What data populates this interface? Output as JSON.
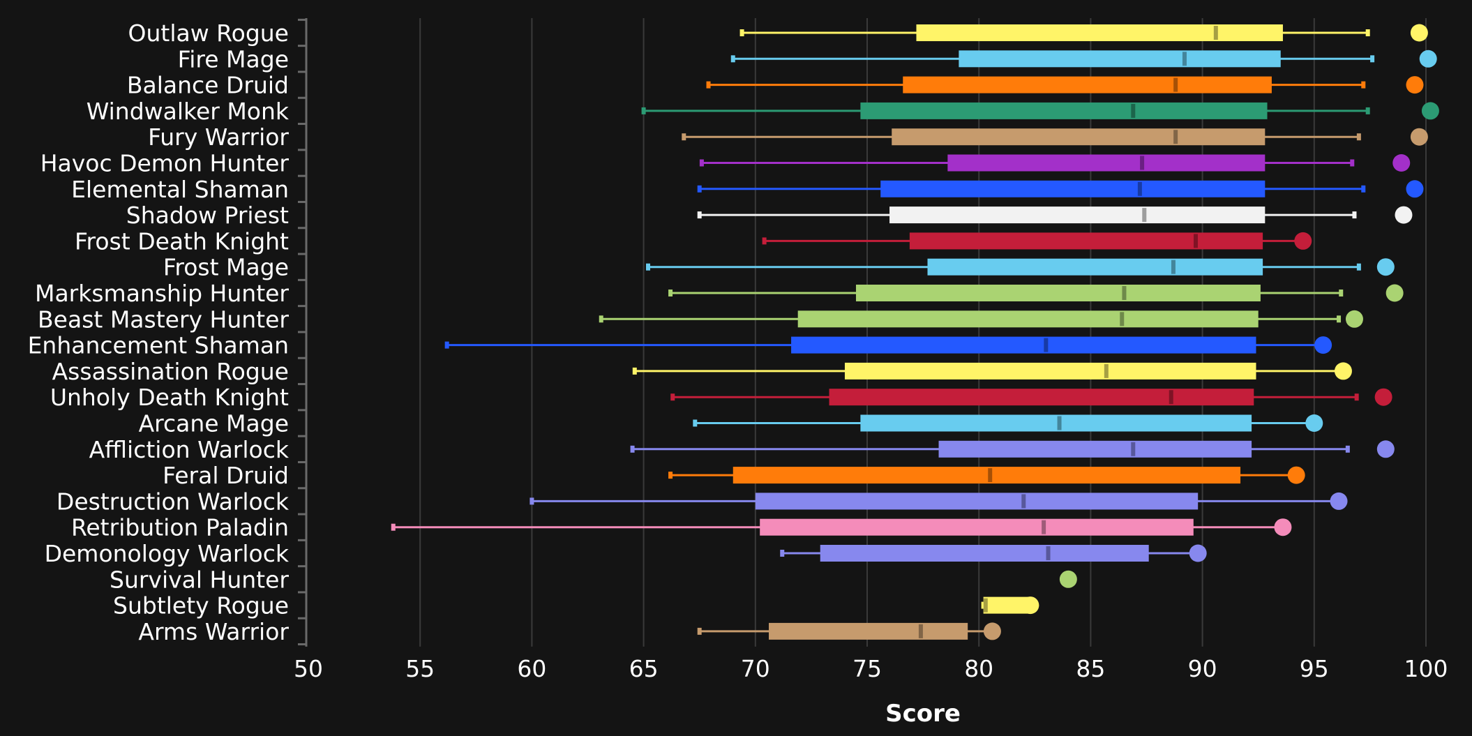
{
  "chart_data": {
    "type": "boxplot",
    "title": "",
    "xlabel": "Score",
    "ylabel": "",
    "xlim": [
      50,
      100
    ],
    "xticks": [
      "50",
      "55",
      "60",
      "65",
      "70",
      "75",
      "80",
      "85",
      "90",
      "95",
      "100"
    ],
    "grid": "vertical",
    "legend": "none",
    "series": [
      {
        "name": "Outlaw Rogue",
        "color": "#fff468",
        "min": 69.4,
        "q1": 77.2,
        "median": 90.6,
        "q3": 93.6,
        "max": 97.4,
        "max_point": 99.7
      },
      {
        "name": "Fire Mage",
        "color": "#68ccef",
        "min": 69.0,
        "q1": 79.1,
        "median": 89.2,
        "q3": 93.5,
        "max": 97.6,
        "max_point": 100.1
      },
      {
        "name": "Balance Druid",
        "color": "#ff7c0a",
        "min": 67.9,
        "q1": 76.6,
        "median": 88.8,
        "q3": 93.1,
        "max": 97.2,
        "max_point": 99.5
      },
      {
        "name": "Windwalker Monk",
        "color": "#2c9b74",
        "min": 65.0,
        "q1": 74.7,
        "median": 86.9,
        "q3": 92.9,
        "max": 97.4,
        "max_point": 100.2
      },
      {
        "name": "Fury Warrior",
        "color": "#c69b6d",
        "min": 66.8,
        "q1": 76.1,
        "median": 88.8,
        "q3": 92.8,
        "max": 97.0,
        "max_point": 99.7
      },
      {
        "name": "Havoc Demon Hunter",
        "color": "#a330c9",
        "min": 67.6,
        "q1": 78.6,
        "median": 87.3,
        "q3": 92.8,
        "max": 96.7,
        "max_point": 98.9
      },
      {
        "name": "Elemental Shaman",
        "color": "#2459ff",
        "min": 67.5,
        "q1": 75.6,
        "median": 87.2,
        "q3": 92.8,
        "max": 97.2,
        "max_point": 99.5
      },
      {
        "name": "Shadow Priest",
        "color": "#f2f2f2",
        "min": 67.5,
        "q1": 76.0,
        "median": 87.4,
        "q3": 92.8,
        "max": 96.8,
        "max_point": 99.0
      },
      {
        "name": "Frost Death Knight",
        "color": "#c41e3a",
        "min": 70.4,
        "q1": 76.9,
        "median": 89.7,
        "q3": 92.7,
        "max": 94.5,
        "max_point": 94.5
      },
      {
        "name": "Frost Mage",
        "color": "#68ccef",
        "min": 65.2,
        "q1": 77.7,
        "median": 88.7,
        "q3": 92.7,
        "max": 97.0,
        "max_point": 98.2
      },
      {
        "name": "Marksmanship Hunter",
        "color": "#aad372",
        "min": 66.2,
        "q1": 74.5,
        "median": 86.5,
        "q3": 92.6,
        "max": 96.2,
        "max_point": 98.6
      },
      {
        "name": "Beast Mastery Hunter",
        "color": "#aad372",
        "min": 63.1,
        "q1": 71.9,
        "median": 86.4,
        "q3": 92.5,
        "max": 96.1,
        "max_point": 96.8
      },
      {
        "name": "Enhancement Shaman",
        "color": "#2459ff",
        "min": 56.2,
        "q1": 71.6,
        "median": 83.0,
        "q3": 92.4,
        "max": 95.4,
        "max_point": 95.4
      },
      {
        "name": "Assassination Rogue",
        "color": "#fff468",
        "min": 64.6,
        "q1": 74.0,
        "median": 85.7,
        "q3": 92.4,
        "max": 96.3,
        "max_point": 96.3
      },
      {
        "name": "Unholy Death Knight",
        "color": "#c41e3a",
        "min": 66.3,
        "q1": 73.3,
        "median": 88.6,
        "q3": 92.3,
        "max": 96.9,
        "max_point": 98.1
      },
      {
        "name": "Arcane Mage",
        "color": "#68ccef",
        "min": 67.3,
        "q1": 74.7,
        "median": 83.6,
        "q3": 92.2,
        "max": 95.0,
        "max_point": 95.0
      },
      {
        "name": "Affliction Warlock",
        "color": "#8788ee",
        "min": 64.5,
        "q1": 78.2,
        "median": 86.9,
        "q3": 92.2,
        "max": 96.5,
        "max_point": 98.2
      },
      {
        "name": "Feral Druid",
        "color": "#ff7c0a",
        "min": 66.2,
        "q1": 69.0,
        "median": 80.5,
        "q3": 91.7,
        "max": 94.2,
        "max_point": 94.2
      },
      {
        "name": "Destruction Warlock",
        "color": "#8788ee",
        "min": 60.0,
        "q1": 70.0,
        "median": 82.0,
        "q3": 89.8,
        "max": 96.1,
        "max_point": 96.1
      },
      {
        "name": "Retribution Paladin",
        "color": "#f48cba",
        "min": 53.8,
        "q1": 70.2,
        "median": 82.9,
        "q3": 89.6,
        "max": 93.6,
        "max_point": 93.6
      },
      {
        "name": "Demonology Warlock",
        "color": "#8788ee",
        "min": 71.2,
        "q1": 72.9,
        "median": 83.1,
        "q3": 87.6,
        "max": 89.8,
        "max_point": 89.8
      },
      {
        "name": "Survival Hunter",
        "color": "#aad372",
        "min": 84.0,
        "q1": 84.0,
        "median": 84.0,
        "q3": 84.0,
        "max": 84.0,
        "max_point": 84.0
      },
      {
        "name": "Subtlety Rogue",
        "color": "#fff468",
        "min": 80.2,
        "q1": 80.2,
        "median": 80.3,
        "q3": 82.3,
        "max": 82.3,
        "max_point": 82.3
      },
      {
        "name": "Arms Warrior",
        "color": "#c69b6d",
        "min": 67.5,
        "q1": 70.6,
        "median": 77.4,
        "q3": 79.5,
        "max": 80.6,
        "max_point": 80.6
      }
    ]
  }
}
